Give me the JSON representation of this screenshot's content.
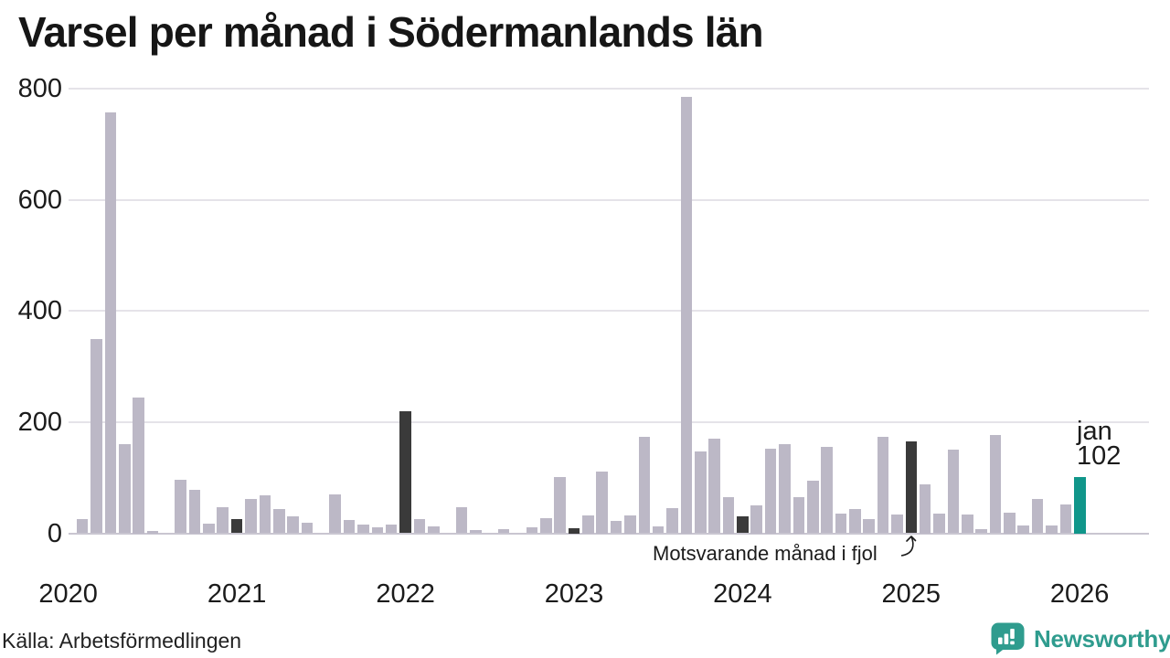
{
  "title": "Varsel per månad i Södermanlands län",
  "source": "Källa: Arbetsförmedlingen",
  "annotation": {
    "text": "Motsvarande månad i fjol"
  },
  "highlight_label": {
    "line1": "jan",
    "line2": "102"
  },
  "logo": {
    "text": "Newsworthy"
  },
  "colors": {
    "bar_normal": "#bcb8c6",
    "bar_dark": "#3a3a3a",
    "bar_highlight": "#10968a",
    "gridline": "#e5e3e9",
    "axis_line": "#c9c6d1",
    "text": "#1b1b1b",
    "logo_teal": "#2f9c8e"
  },
  "chart_data": {
    "type": "bar",
    "title": "Varsel per månad i Södermanlands län",
    "xlabel": "",
    "ylabel": "",
    "ylim": [
      0,
      800
    ],
    "yticks": [
      0,
      200,
      400,
      600,
      800
    ],
    "xticks": [
      "2020",
      "2021",
      "2022",
      "2023",
      "2024",
      "2025",
      "2026"
    ],
    "grid": true,
    "legend_position": "none",
    "series_name": "Varsel per månad",
    "months": [
      {
        "month": "2020-02",
        "value": 25,
        "kind": "normal"
      },
      {
        "month": "2020-03",
        "value": 349,
        "kind": "normal"
      },
      {
        "month": "2020-04",
        "value": 757,
        "kind": "normal"
      },
      {
        "month": "2020-05",
        "value": 161,
        "kind": "normal"
      },
      {
        "month": "2020-06",
        "value": 245,
        "kind": "normal"
      },
      {
        "month": "2020-07",
        "value": 5,
        "kind": "normal"
      },
      {
        "month": "2020-08",
        "value": 0,
        "kind": "normal"
      },
      {
        "month": "2020-09",
        "value": 96,
        "kind": "normal"
      },
      {
        "month": "2020-10",
        "value": 79,
        "kind": "normal"
      },
      {
        "month": "2020-11",
        "value": 17,
        "kind": "normal"
      },
      {
        "month": "2020-12",
        "value": 47,
        "kind": "normal"
      },
      {
        "month": "2021-01",
        "value": 25,
        "kind": "dark"
      },
      {
        "month": "2021-02",
        "value": 61,
        "kind": "normal"
      },
      {
        "month": "2021-03",
        "value": 68,
        "kind": "normal"
      },
      {
        "month": "2021-04",
        "value": 44,
        "kind": "normal"
      },
      {
        "month": "2021-05",
        "value": 30,
        "kind": "normal"
      },
      {
        "month": "2021-06",
        "value": 19,
        "kind": "normal"
      },
      {
        "month": "2021-07",
        "value": 0,
        "kind": "normal"
      },
      {
        "month": "2021-08",
        "value": 70,
        "kind": "normal"
      },
      {
        "month": "2021-09",
        "value": 24,
        "kind": "normal"
      },
      {
        "month": "2021-10",
        "value": 16,
        "kind": "normal"
      },
      {
        "month": "2021-11",
        "value": 10,
        "kind": "normal"
      },
      {
        "month": "2021-12",
        "value": 15,
        "kind": "normal"
      },
      {
        "month": "2022-01",
        "value": 220,
        "kind": "dark"
      },
      {
        "month": "2022-02",
        "value": 26,
        "kind": "normal"
      },
      {
        "month": "2022-03",
        "value": 12,
        "kind": "normal"
      },
      {
        "month": "2022-04",
        "value": 0,
        "kind": "normal"
      },
      {
        "month": "2022-05",
        "value": 47,
        "kind": "normal"
      },
      {
        "month": "2022-06",
        "value": 6,
        "kind": "normal"
      },
      {
        "month": "2022-07",
        "value": 0,
        "kind": "normal"
      },
      {
        "month": "2022-08",
        "value": 8,
        "kind": "normal"
      },
      {
        "month": "2022-09",
        "value": 0,
        "kind": "normal"
      },
      {
        "month": "2022-10",
        "value": 10,
        "kind": "normal"
      },
      {
        "month": "2022-11",
        "value": 27,
        "kind": "normal"
      },
      {
        "month": "2022-12",
        "value": 101,
        "kind": "normal"
      },
      {
        "month": "2023-01",
        "value": 9,
        "kind": "dark"
      },
      {
        "month": "2023-02",
        "value": 32,
        "kind": "normal"
      },
      {
        "month": "2023-03",
        "value": 111,
        "kind": "normal"
      },
      {
        "month": "2023-04",
        "value": 22,
        "kind": "normal"
      },
      {
        "month": "2023-05",
        "value": 32,
        "kind": "normal"
      },
      {
        "month": "2023-06",
        "value": 173,
        "kind": "normal"
      },
      {
        "month": "2023-07",
        "value": 13,
        "kind": "normal"
      },
      {
        "month": "2023-08",
        "value": 45,
        "kind": "normal"
      },
      {
        "month": "2023-09",
        "value": 786,
        "kind": "normal"
      },
      {
        "month": "2023-10",
        "value": 147,
        "kind": "normal"
      },
      {
        "month": "2023-11",
        "value": 170,
        "kind": "normal"
      },
      {
        "month": "2023-12",
        "value": 65,
        "kind": "normal"
      },
      {
        "month": "2024-01",
        "value": 30,
        "kind": "dark"
      },
      {
        "month": "2024-02",
        "value": 51,
        "kind": "normal"
      },
      {
        "month": "2024-03",
        "value": 153,
        "kind": "normal"
      },
      {
        "month": "2024-04",
        "value": 161,
        "kind": "normal"
      },
      {
        "month": "2024-05",
        "value": 65,
        "kind": "normal"
      },
      {
        "month": "2024-06",
        "value": 94,
        "kind": "normal"
      },
      {
        "month": "2024-07",
        "value": 155,
        "kind": "normal"
      },
      {
        "month": "2024-08",
        "value": 35,
        "kind": "normal"
      },
      {
        "month": "2024-09",
        "value": 44,
        "kind": "normal"
      },
      {
        "month": "2024-10",
        "value": 25,
        "kind": "normal"
      },
      {
        "month": "2024-11",
        "value": 173,
        "kind": "normal"
      },
      {
        "month": "2024-12",
        "value": 33,
        "kind": "normal"
      },
      {
        "month": "2025-01",
        "value": 165,
        "kind": "dark"
      },
      {
        "month": "2025-02",
        "value": 88,
        "kind": "normal"
      },
      {
        "month": "2025-03",
        "value": 36,
        "kind": "normal"
      },
      {
        "month": "2025-04",
        "value": 150,
        "kind": "normal"
      },
      {
        "month": "2025-05",
        "value": 33,
        "kind": "normal"
      },
      {
        "month": "2025-06",
        "value": 8,
        "kind": "normal"
      },
      {
        "month": "2025-07",
        "value": 177,
        "kind": "normal"
      },
      {
        "month": "2025-08",
        "value": 37,
        "kind": "normal"
      },
      {
        "month": "2025-09",
        "value": 14,
        "kind": "normal"
      },
      {
        "month": "2025-10",
        "value": 61,
        "kind": "normal"
      },
      {
        "month": "2025-11",
        "value": 14,
        "kind": "normal"
      },
      {
        "month": "2025-12",
        "value": 52,
        "kind": "normal"
      },
      {
        "month": "2026-01",
        "value": 102,
        "kind": "highlight"
      }
    ]
  }
}
